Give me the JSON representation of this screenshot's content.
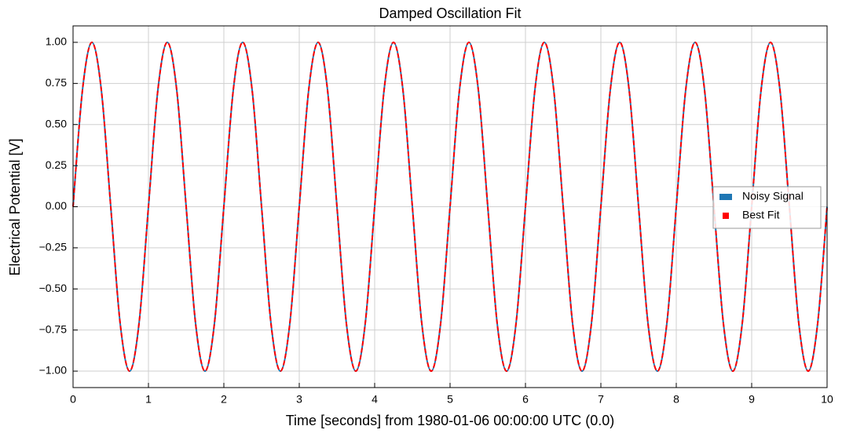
{
  "chart_data": {
    "type": "line",
    "title": "Damped Oscillation Fit",
    "xlabel": "Time [seconds] from 1980-01-06 00:00:00 UTC (0.0)",
    "ylabel": "Electrical Potential [V]",
    "x": [
      0,
      0.125,
      0.25,
      0.375,
      0.5,
      0.625,
      0.75,
      0.875,
      1,
      1.125,
      1.25,
      1.375,
      1.5,
      1.625,
      1.75,
      1.875,
      2,
      2.125,
      2.25,
      2.375,
      2.5,
      2.625,
      2.75,
      2.875,
      3,
      3.125,
      3.25,
      3.375,
      3.5,
      3.625,
      3.75,
      3.875,
      4,
      4.125,
      4.25,
      4.375,
      4.5,
      4.625,
      4.75,
      4.875,
      5,
      5.125,
      5.25,
      5.375,
      5.5,
      5.625,
      5.75,
      5.875,
      6,
      6.125,
      6.25,
      6.375,
      6.5,
      6.625,
      6.75,
      6.875,
      7,
      7.125,
      7.25,
      7.375,
      7.5,
      7.625,
      7.75,
      7.875,
      8,
      8.125,
      8.25,
      8.375,
      8.5,
      8.625,
      8.75,
      8.875,
      9,
      9.125,
      9.25,
      9.375,
      9.5,
      9.625,
      9.75,
      9.875,
      10
    ],
    "series": [
      {
        "name": "Noisy Signal",
        "color": "#1f77b4",
        "values": [
          0,
          0.71,
          1,
          0.71,
          0,
          -0.71,
          -1,
          -0.71,
          0,
          0.71,
          1,
          0.71,
          0,
          -0.71,
          -1,
          -0.71,
          0,
          0.71,
          1,
          0.71,
          0,
          -0.71,
          -1,
          -0.71,
          0,
          0.71,
          1,
          0.71,
          0,
          -0.71,
          -1,
          -0.71,
          0,
          0.71,
          1,
          0.71,
          0,
          -0.71,
          -1,
          -0.71,
          0,
          0.71,
          1,
          0.71,
          0,
          -0.71,
          -1,
          -0.71,
          0,
          0.71,
          1,
          0.71,
          0,
          -0.71,
          -1,
          -0.71,
          0,
          0.71,
          1,
          0.71,
          0,
          -0.71,
          -1,
          -0.71,
          0,
          0.71,
          1,
          0.71,
          0,
          -0.71,
          -1,
          -0.71,
          0,
          0.71,
          1,
          0.71,
          0,
          -0.71,
          -1,
          -0.71,
          0
        ]
      },
      {
        "name": "Best Fit",
        "color": "#ff0000",
        "dashed": true,
        "values": [
          0,
          0.71,
          1,
          0.71,
          0,
          -0.71,
          -1,
          -0.71,
          0,
          0.71,
          1,
          0.71,
          0,
          -0.71,
          -1,
          -0.71,
          0,
          0.71,
          1,
          0.71,
          0,
          -0.71,
          -1,
          -0.71,
          0,
          0.71,
          1,
          0.71,
          0,
          -0.71,
          -1,
          -0.71,
          0,
          0.71,
          1,
          0.71,
          0,
          -0.71,
          -1,
          -0.71,
          0,
          0.71,
          1,
          0.71,
          0,
          -0.71,
          -1,
          -0.71,
          0,
          0.71,
          1,
          0.71,
          0,
          -0.71,
          -1,
          -0.71,
          0,
          0.71,
          1,
          0.71,
          0,
          -0.71,
          -1,
          -0.71,
          0,
          0.71,
          1,
          0.71,
          0,
          -0.71,
          -1,
          -0.71,
          0,
          0.71,
          1,
          0.71,
          0,
          -0.71,
          -1,
          -0.71,
          0
        ]
      }
    ],
    "xlim": [
      0,
      10
    ],
    "xticks": [
      0,
      1,
      2,
      3,
      4,
      5,
      6,
      7,
      8,
      9,
      10
    ],
    "ylim": [
      -1.1,
      1.1
    ],
    "yticks": [
      {
        "value": -1,
        "label": "−1.00"
      },
      {
        "value": -0.75,
        "label": "−0.75"
      },
      {
        "value": -0.5,
        "label": "−0.50"
      },
      {
        "value": -0.25,
        "label": "−0.25"
      },
      {
        "value": 0,
        "label": "0.00"
      },
      {
        "value": 0.25,
        "label": "0.25"
      },
      {
        "value": 0.5,
        "label": "0.50"
      },
      {
        "value": 0.75,
        "label": "0.75"
      },
      {
        "value": 1,
        "label": "1.00"
      }
    ],
    "grid": true,
    "legend": "right"
  }
}
